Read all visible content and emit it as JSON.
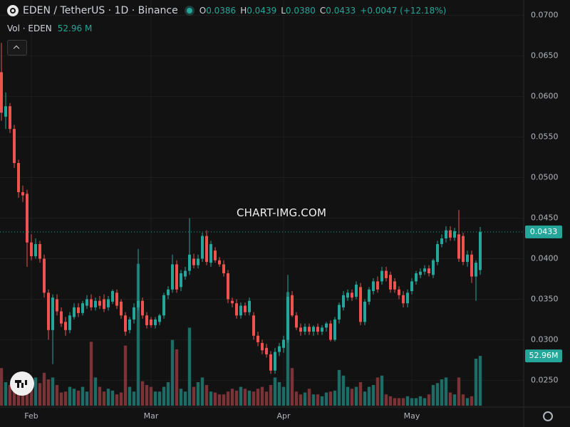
{
  "header": {
    "title": "EDEN / TetherUS · 1D · Binance",
    "open_key": "O",
    "open": "0.0386",
    "high_key": "H",
    "high": "0.0439",
    "low_key": "L",
    "low": "0.0380",
    "close_key": "C",
    "close": "0.0433",
    "change": "+0.0047 (+12.18%)",
    "volume_title": "Vol · EDEN",
    "volume": "52.96 M"
  },
  "chart_data": {
    "type": "candlestick",
    "watermark": "CHART-IMG.COM",
    "up_color": "#26a69a",
    "down_color": "#ef5350",
    "volume_up_color": "#1f6b65",
    "volume_down_color": "#7a3336",
    "grid": true,
    "ylim": [
      0.0217,
      0.0719
    ],
    "yticks": [
      {
        "value": 0.025,
        "label": "0.0250"
      },
      {
        "value": 0.03,
        "label": "0.0300"
      },
      {
        "value": 0.035,
        "label": "0.0350"
      },
      {
        "value": 0.04,
        "label": "0.0400"
      },
      {
        "value": 0.045,
        "label": "0.0450"
      },
      {
        "value": 0.05,
        "label": "0.0500"
      },
      {
        "value": 0.055,
        "label": "0.0550"
      },
      {
        "value": 0.06,
        "label": "0.0600"
      },
      {
        "value": 0.065,
        "label": "0.0650"
      },
      {
        "value": 0.07,
        "label": "0.0700"
      }
    ],
    "volume_ylim": [
      0,
      100
    ],
    "last_price_label": "0.0433",
    "last_volume_label": "52.96M",
    "categories": [
      null,
      null,
      null,
      null,
      null,
      null,
      null,
      "Feb",
      null,
      null,
      null,
      null,
      null,
      null,
      null,
      null,
      null,
      null,
      null,
      null,
      null,
      null,
      null,
      null,
      null,
      null,
      null,
      null,
      null,
      null,
      null,
      null,
      null,
      null,
      null,
      "Mar",
      null,
      null,
      null,
      null,
      null,
      null,
      null,
      null,
      null,
      null,
      null,
      null,
      null,
      null,
      null,
      null,
      null,
      null,
      null,
      null,
      null,
      null,
      null,
      null,
      null,
      null,
      null,
      null,
      null,
      null,
      "Apr",
      null,
      null,
      null,
      null,
      null,
      null,
      null,
      null,
      null,
      null,
      null,
      null,
      null,
      null,
      null,
      null,
      null,
      null,
      null,
      null,
      null,
      null,
      null,
      null,
      null,
      null,
      null,
      null,
      null,
      "May",
      null,
      null,
      null,
      null,
      null,
      null,
      null,
      null,
      null,
      null,
      null,
      null,
      null,
      null,
      null,
      null
    ],
    "open": [
      0.063,
      0.0575,
      0.0588,
      0.056,
      0.0518,
      0.0482,
      0.048,
      0.042,
      0.0403,
      0.0418,
      0.04,
      0.0358,
      0.0312,
      0.035,
      0.0335,
      0.0322,
      0.0312,
      0.0328,
      0.034,
      0.0333,
      0.0342,
      0.035,
      0.034,
      0.0348,
      0.035,
      0.034,
      0.0347,
      0.0358,
      0.0347,
      0.033,
      0.0312,
      0.0325,
      0.034,
      0.0348,
      0.033,
      0.0325,
      0.0318,
      0.0322,
      0.033,
      0.0355,
      0.0362,
      0.0393,
      0.0365,
      0.0378,
      0.0385,
      0.04,
      0.0392,
      0.04,
      0.0428,
      0.0395,
      0.041,
      0.0398,
      0.0393,
      0.0382,
      0.0348,
      0.0345,
      0.033,
      0.0342,
      0.0334,
      0.033,
      0.0305,
      0.0296,
      0.029,
      0.0282,
      0.0262,
      0.0285,
      0.029,
      0.03,
      0.0355,
      0.033,
      0.0315,
      0.031,
      0.0316,
      0.031,
      0.0316,
      0.031,
      0.0315,
      0.032,
      0.03,
      0.0325,
      0.034,
      0.0352,
      0.0358,
      0.0353,
      0.0365,
      0.0322,
      0.0347,
      0.036,
      0.0372,
      0.0372,
      0.0385,
      0.038,
      0.0372,
      0.0362,
      0.0355,
      0.0345,
      0.036,
      0.0372,
      0.038,
      0.0384,
      0.0388,
      0.038,
      0.0396,
      0.0418,
      0.0425,
      0.0435,
      0.0426,
      0.043,
      0.0428,
      0.0396,
      0.0405,
      0.0378,
      0.0386
    ],
    "high": [
      0.0666,
      0.0605,
      0.0592,
      0.0565,
      0.0522,
      0.049,
      0.0485,
      0.043,
      0.0425,
      0.0422,
      0.0405,
      0.0362,
      0.0356,
      0.0356,
      0.034,
      0.0328,
      0.0334,
      0.0345,
      0.0345,
      0.0348,
      0.0355,
      0.0356,
      0.0352,
      0.0354,
      0.0356,
      0.0354,
      0.0362,
      0.0362,
      0.035,
      0.0334,
      0.0328,
      0.0345,
      0.0412,
      0.0352,
      0.0334,
      0.0328,
      0.0328,
      0.0332,
      0.0358,
      0.0366,
      0.0405,
      0.0398,
      0.0386,
      0.039,
      0.045,
      0.0406,
      0.0405,
      0.0432,
      0.0435,
      0.0422,
      0.0414,
      0.0402,
      0.0398,
      0.0386,
      0.0352,
      0.035,
      0.0346,
      0.0346,
      0.0352,
      0.0334,
      0.031,
      0.03,
      0.0295,
      0.0286,
      0.029,
      0.0296,
      0.0305,
      0.038,
      0.036,
      0.0334,
      0.032,
      0.032,
      0.032,
      0.0318,
      0.032,
      0.0318,
      0.0322,
      0.0324,
      0.0328,
      0.0346,
      0.036,
      0.0362,
      0.0362,
      0.0372,
      0.037,
      0.035,
      0.0365,
      0.0376,
      0.0378,
      0.039,
      0.039,
      0.0384,
      0.0376,
      0.0366,
      0.036,
      0.0362,
      0.0376,
      0.0385,
      0.0388,
      0.0392,
      0.0392,
      0.04,
      0.0422,
      0.043,
      0.044,
      0.044,
      0.0438,
      0.046,
      0.0432,
      0.041,
      0.041,
      0.0398,
      0.0439
    ],
    "low": [
      0.057,
      0.056,
      0.0555,
      0.0512,
      0.0475,
      0.047,
      0.039,
      0.0398,
      0.04,
      0.0395,
      0.0352,
      0.03,
      0.027,
      0.033,
      0.0316,
      0.0305,
      0.0308,
      0.0325,
      0.0328,
      0.033,
      0.0338,
      0.0336,
      0.0336,
      0.0338,
      0.0334,
      0.0336,
      0.0344,
      0.0338,
      0.0326,
      0.0305,
      0.0308,
      0.032,
      0.0336,
      0.0326,
      0.0314,
      0.0315,
      0.0314,
      0.0318,
      0.0326,
      0.035,
      0.0358,
      0.0358,
      0.036,
      0.0374,
      0.038,
      0.0388,
      0.0388,
      0.0396,
      0.0392,
      0.039,
      0.0395,
      0.039,
      0.0378,
      0.0345,
      0.034,
      0.0326,
      0.0326,
      0.033,
      0.033,
      0.03,
      0.0292,
      0.0282,
      0.0278,
      0.0258,
      0.0258,
      0.028,
      0.0284,
      0.0296,
      0.0328,
      0.0312,
      0.0305,
      0.0306,
      0.0306,
      0.0305,
      0.0306,
      0.0306,
      0.031,
      0.0298,
      0.0298,
      0.032,
      0.0336,
      0.0348,
      0.0348,
      0.035,
      0.0318,
      0.0318,
      0.0343,
      0.0356,
      0.0358,
      0.0368,
      0.0372,
      0.0358,
      0.0358,
      0.035,
      0.034,
      0.034,
      0.0356,
      0.0368,
      0.0376,
      0.038,
      0.0378,
      0.0376,
      0.0392,
      0.0414,
      0.042,
      0.0422,
      0.0422,
      0.0396,
      0.0392,
      0.039,
      0.037,
      0.0348,
      0.038
    ],
    "close": [
      0.058,
      0.0588,
      0.056,
      0.0518,
      0.0482,
      0.0478,
      0.042,
      0.0403,
      0.0418,
      0.04,
      0.0358,
      0.0312,
      0.0352,
      0.0335,
      0.032,
      0.0312,
      0.033,
      0.034,
      0.0333,
      0.0345,
      0.035,
      0.034,
      0.0348,
      0.0342,
      0.0338,
      0.035,
      0.036,
      0.0342,
      0.033,
      0.031,
      0.0325,
      0.034,
      0.0348,
      0.033,
      0.0318,
      0.0318,
      0.0325,
      0.033,
      0.0355,
      0.0362,
      0.0393,
      0.0362,
      0.0382,
      0.0385,
      0.0405,
      0.0392,
      0.04,
      0.0428,
      0.0396,
      0.0418,
      0.0398,
      0.0393,
      0.0382,
      0.035,
      0.0345,
      0.033,
      0.0342,
      0.0334,
      0.0348,
      0.0305,
      0.0297,
      0.0287,
      0.0282,
      0.0262,
      0.0285,
      0.0292,
      0.03,
      0.0353,
      0.033,
      0.0315,
      0.031,
      0.0316,
      0.031,
      0.0316,
      0.031,
      0.0315,
      0.032,
      0.03,
      0.0325,
      0.0343,
      0.0355,
      0.0358,
      0.0352,
      0.0368,
      0.0322,
      0.0347,
      0.0362,
      0.0372,
      0.0362,
      0.0385,
      0.0376,
      0.0362,
      0.0362,
      0.0355,
      0.0345,
      0.0358,
      0.0372,
      0.0382,
      0.0384,
      0.0388,
      0.0382,
      0.0398,
      0.0418,
      0.0425,
      0.0435,
      0.0426,
      0.0434,
      0.04,
      0.0396,
      0.0405,
      0.0378,
      0.0395,
      0.0433
    ],
    "volume": [
      40,
      25,
      22,
      30,
      28,
      20,
      32,
      28,
      30,
      24,
      35,
      28,
      30,
      22,
      14,
      15,
      20,
      18,
      16,
      20,
      15,
      68,
      30,
      20,
      15,
      18,
      16,
      12,
      14,
      64,
      20,
      15,
      151,
      26,
      22,
      20,
      15,
      15,
      20,
      25,
      70,
      60,
      18,
      15,
      83,
      20,
      25,
      30,
      22,
      15,
      14,
      12,
      12,
      15,
      18,
      16,
      20,
      18,
      16,
      15,
      18,
      20,
      15,
      22,
      30,
      25,
      20,
      121,
      40,
      15,
      12,
      14,
      18,
      12,
      12,
      10,
      14,
      15,
      16,
      38,
      32,
      20,
      18,
      20,
      25,
      15,
      20,
      22,
      30,
      32,
      12,
      10,
      8,
      8,
      8,
      10,
      8,
      8,
      10,
      8,
      12,
      22,
      24,
      28,
      30,
      14,
      12,
      30,
      12,
      8,
      10,
      50,
      52.96
    ]
  }
}
